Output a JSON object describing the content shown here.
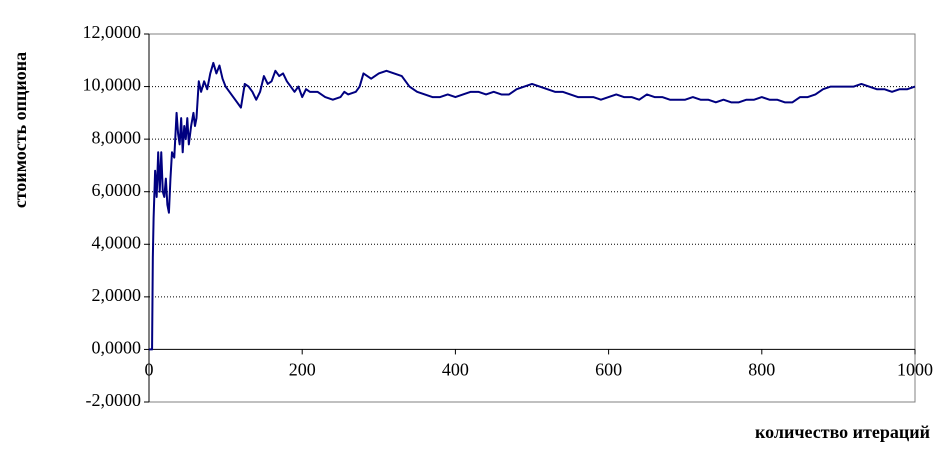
{
  "chart_data": {
    "type": "line",
    "xlabel": "количество итераций",
    "ylabel": "стоимость опциона",
    "color": "#000080",
    "xlim": [
      0,
      1000
    ],
    "xticks": [
      0,
      200,
      400,
      600,
      800,
      1000
    ],
    "ylim": [
      -2,
      12
    ],
    "yticks": [
      {
        "value": -2,
        "label": "-2,0000"
      },
      {
        "value": 0,
        "label": "0,0000"
      },
      {
        "value": 2,
        "label": "2,0000"
      },
      {
        "value": 4,
        "label": "4,0000"
      },
      {
        "value": 6,
        "label": "6,0000"
      },
      {
        "value": 8,
        "label": "8,0000"
      },
      {
        "value": 10,
        "label": "10,0000"
      },
      {
        "value": 12,
        "label": "12,0000"
      }
    ],
    "grid": true,
    "x": [
      0,
      2,
      4,
      5,
      6,
      8,
      10,
      12,
      14,
      16,
      18,
      20,
      22,
      24,
      26,
      28,
      30,
      33,
      36,
      38,
      40,
      42,
      44,
      46,
      48,
      50,
      52,
      55,
      58,
      60,
      62,
      65,
      68,
      72,
      76,
      80,
      84,
      88,
      92,
      96,
      100,
      105,
      110,
      115,
      120,
      125,
      130,
      135,
      140,
      145,
      150,
      155,
      160,
      165,
      170,
      175,
      180,
      185,
      190,
      195,
      200,
      205,
      210,
      220,
      230,
      240,
      250,
      255,
      260,
      270,
      275,
      280,
      290,
      300,
      310,
      320,
      330,
      340,
      350,
      360,
      370,
      380,
      390,
      400,
      410,
      420,
      430,
      440,
      450,
      460,
      470,
      480,
      490,
      500,
      510,
      520,
      530,
      540,
      550,
      560,
      570,
      580,
      590,
      600,
      610,
      620,
      630,
      640,
      650,
      660,
      670,
      680,
      690,
      700,
      710,
      720,
      730,
      740,
      750,
      760,
      770,
      780,
      790,
      800,
      810,
      820,
      830,
      840,
      850,
      860,
      870,
      880,
      890,
      900,
      910,
      920,
      930,
      940,
      950,
      960,
      970,
      980,
      990,
      1000
    ],
    "values": [
      0,
      0,
      0,
      3.5,
      5,
      6.8,
      5.8,
      7.5,
      6,
      7.5,
      6,
      5.8,
      6.5,
      5.5,
      5.2,
      6.5,
      7.5,
      7.3,
      9,
      8.2,
      7.8,
      8.8,
      7.5,
      8.5,
      8,
      8.8,
      7.8,
      8.5,
      9,
      8.5,
      8.8,
      10.2,
      9.8,
      10.2,
      9.9,
      10.5,
      10.9,
      10.5,
      10.8,
      10.3,
      10,
      9.8,
      9.6,
      9.4,
      9.2,
      10.1,
      10,
      9.8,
      9.5,
      9.8,
      10.4,
      10.1,
      10.2,
      10.6,
      10.4,
      10.5,
      10.2,
      10,
      9.8,
      10,
      9.6,
      9.9,
      9.8,
      9.8,
      9.6,
      9.5,
      9.6,
      9.8,
      9.7,
      9.8,
      10,
      10.5,
      10.3,
      10.5,
      10.6,
      10.5,
      10.4,
      10,
      9.8,
      9.7,
      9.6,
      9.6,
      9.7,
      9.6,
      9.7,
      9.8,
      9.8,
      9.7,
      9.8,
      9.7,
      9.7,
      9.9,
      10,
      10.1,
      10,
      9.9,
      9.8,
      9.8,
      9.7,
      9.6,
      9.6,
      9.6,
      9.5,
      9.6,
      9.7,
      9.6,
      9.6,
      9.5,
      9.7,
      9.6,
      9.6,
      9.5,
      9.5,
      9.5,
      9.6,
      9.5,
      9.5,
      9.4,
      9.5,
      9.4,
      9.4,
      9.5,
      9.5,
      9.6,
      9.5,
      9.5,
      9.4,
      9.4,
      9.6,
      9.6,
      9.7,
      9.9,
      10,
      10,
      10,
      10,
      10.1,
      10,
      9.9,
      9.9,
      9.8,
      9.9,
      9.9,
      10
    ]
  }
}
